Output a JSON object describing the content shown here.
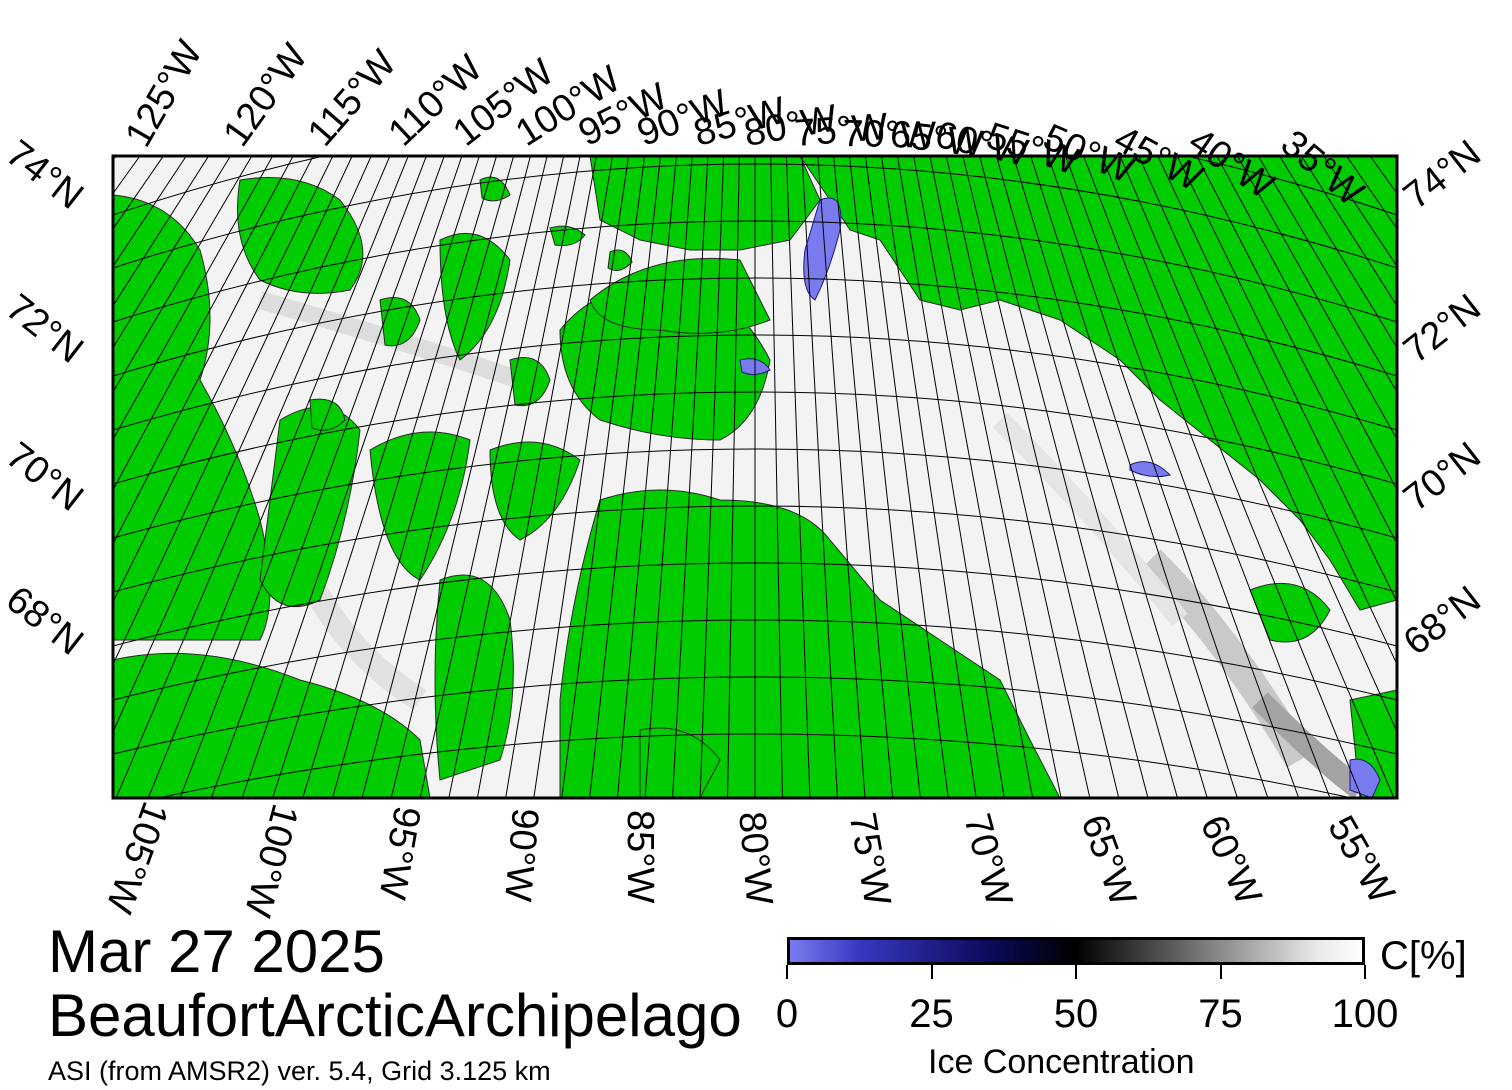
{
  "colors": {
    "land": "#00cc00",
    "ice_full": "#ffffff",
    "ice_low": "#7b7bf0",
    "grid": "#000000",
    "frame": "#000000"
  },
  "map": {
    "top_lon_labels": [
      "125°W",
      "120°W",
      "115°W",
      "110°W",
      "105°W",
      "100°W",
      "95°W",
      "90°W",
      "85°W",
      "80°W",
      "75°W",
      "70°W",
      "65°W",
      "60°W",
      "55°W",
      "50°W",
      "45°W",
      "40°W",
      "35°W"
    ],
    "bottom_lon_labels": [
      "105°W",
      "100°W",
      "95°W",
      "90°W",
      "85°W",
      "80°W",
      "75°W",
      "70°W",
      "65°W",
      "60°W",
      "55°W"
    ],
    "left_lat_labels": [
      "74°N",
      "72°N",
      "70°N",
      "68°N"
    ],
    "right_lat_labels": [
      "74°N",
      "72°N",
      "70°N",
      "68°N"
    ]
  },
  "info": {
    "date": "Mar 27 2025",
    "region": "BeaufortArcticArchipelago",
    "product": "ASI (from AMSR2) ver. 5.4,  Grid 3.125 km"
  },
  "colorbar": {
    "ticks": [
      "0",
      "25",
      "50",
      "75",
      "100"
    ],
    "unit": "C[%]",
    "title": "Ice Concentration",
    "min": 0,
    "max": 100
  }
}
